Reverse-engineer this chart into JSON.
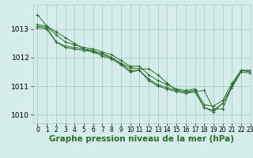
{
  "background_color": "#d4ecea",
  "grid_color": "#aacfcc",
  "line_color": "#2d6a2d",
  "marker_color": "#2d6a2d",
  "xlabel": "Graphe pression niveau de la mer (hPa)",
  "xlabel_fontsize": 7.5,
  "tick_fontsize": 5.5,
  "ytick_fontsize": 6.5,
  "xlim": [
    -0.5,
    23
  ],
  "ylim": [
    1009.7,
    1013.85
  ],
  "yticks": [
    1010,
    1011,
    1012,
    1013
  ],
  "xticks": [
    0,
    1,
    2,
    3,
    4,
    5,
    6,
    7,
    8,
    9,
    10,
    11,
    12,
    13,
    14,
    15,
    16,
    17,
    18,
    19,
    20,
    21,
    22,
    23
  ],
  "series": [
    [
      1013.5,
      1013.1,
      1012.9,
      1012.7,
      1012.5,
      1012.3,
      1012.2,
      1012.15,
      1012.0,
      1011.8,
      1011.65,
      1011.6,
      1011.6,
      1011.4,
      1011.1,
      1010.85,
      1010.8,
      1010.8,
      1010.85,
      1010.2,
      1010.2,
      1011.0,
      1011.55,
      1011.55
    ],
    [
      1013.1,
      1013.05,
      1012.55,
      1012.4,
      1012.35,
      1012.3,
      1012.25,
      1012.1,
      1012.0,
      1011.8,
      1011.55,
      1011.55,
      1011.25,
      1011.05,
      1010.95,
      1010.85,
      1010.8,
      1010.85,
      1010.25,
      1010.15,
      1010.4,
      1011.0,
      1011.55,
      1011.55
    ],
    [
      1013.05,
      1013.0,
      1012.55,
      1012.35,
      1012.3,
      1012.25,
      1012.2,
      1012.05,
      1011.95,
      1011.75,
      1011.5,
      1011.55,
      1011.2,
      1011.0,
      1010.9,
      1010.8,
      1010.75,
      1010.8,
      1010.25,
      1010.1,
      1010.4,
      1010.95,
      1011.5,
      1011.45
    ],
    [
      1013.15,
      1013.1,
      1012.8,
      1012.55,
      1012.45,
      1012.35,
      1012.3,
      1012.2,
      1012.1,
      1011.9,
      1011.7,
      1011.7,
      1011.4,
      1011.2,
      1011.05,
      1010.9,
      1010.85,
      1010.9,
      1010.35,
      1010.3,
      1010.5,
      1011.1,
      1011.55,
      1011.5
    ]
  ]
}
